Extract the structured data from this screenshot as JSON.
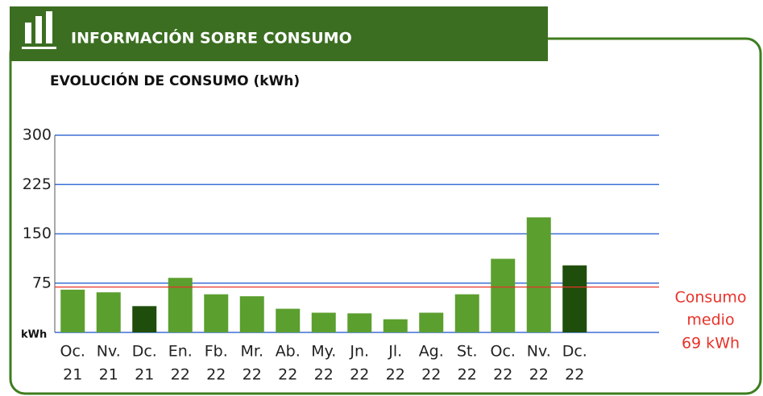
{
  "header": {
    "title": "INFORMACIÓN SOBRE CONSUMO"
  },
  "chart_data": {
    "type": "bar",
    "title": "EVOLUCIÓN DE CONSUMO (kWh)",
    "y_label": "kWh",
    "categories": [
      [
        "Oc.",
        "21"
      ],
      [
        "Nv.",
        "21"
      ],
      [
        "Dc.",
        "21"
      ],
      [
        "En.",
        "22"
      ],
      [
        "Fb.",
        "22"
      ],
      [
        "Mr.",
        "22"
      ],
      [
        "Ab.",
        "22"
      ],
      [
        "My.",
        "22"
      ],
      [
        "Jn.",
        "22"
      ],
      [
        "Jl.",
        "22"
      ],
      [
        "Ag.",
        "22"
      ],
      [
        "St.",
        "22"
      ],
      [
        "Oc.",
        "22"
      ],
      [
        "Nv.",
        "22"
      ],
      [
        "Dc.",
        "22"
      ]
    ],
    "values": [
      65,
      61,
      40,
      83,
      58,
      55,
      36,
      30,
      29,
      20,
      30,
      58,
      112,
      175,
      102
    ],
    "colors": [
      "#5b9f2e",
      "#5b9f2e",
      "#1f4d0b",
      "#5b9f2e",
      "#5b9f2e",
      "#5b9f2e",
      "#5b9f2e",
      "#5b9f2e",
      "#5b9f2e",
      "#5b9f2e",
      "#5b9f2e",
      "#5b9f2e",
      "#5b9f2e",
      "#5b9f2e",
      "#1f4d0b"
    ],
    "ylim": [
      0,
      300
    ],
    "yticks": [
      75,
      150,
      225,
      300
    ],
    "grid": true,
    "grid_color": "#3d6fd4",
    "average": {
      "value": 69,
      "color": "#e8322a",
      "label": [
        "Consumo",
        "medio"
      ],
      "value_label": "69 kWh"
    }
  }
}
